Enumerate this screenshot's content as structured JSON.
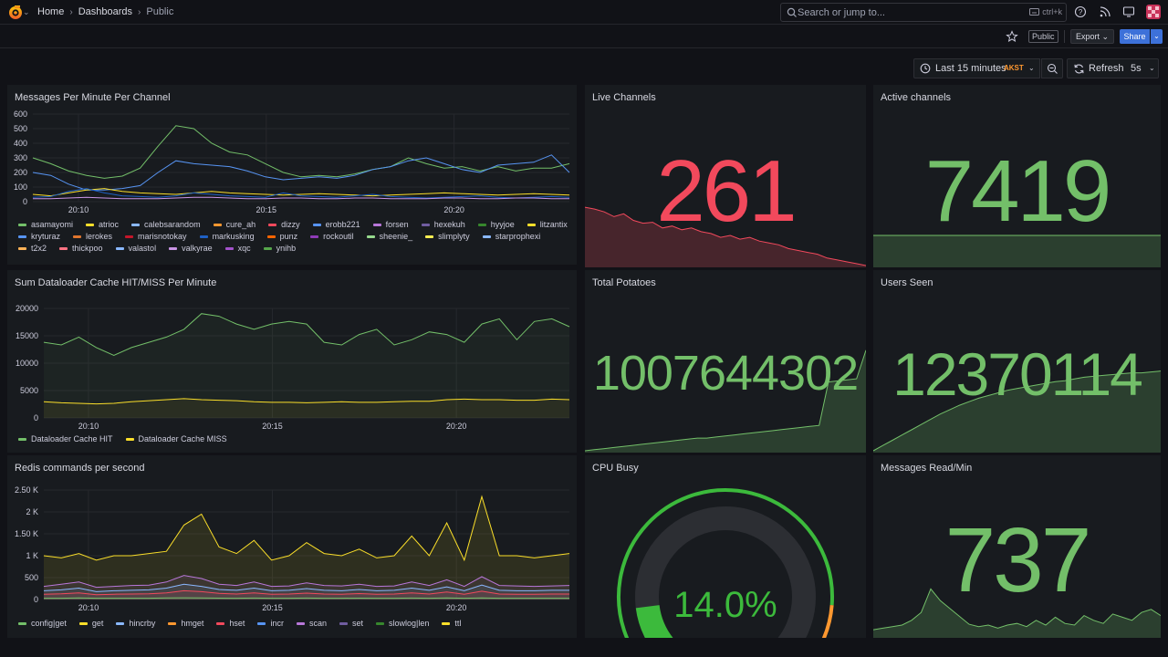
{
  "nav": {
    "breadcrumbs": [
      "Home",
      "Dashboards",
      "Public"
    ],
    "search_placeholder": "Search or jump to...",
    "search_shortcut": "ctrl+k"
  },
  "toolbar": {
    "public_badge": "Public",
    "export_label": "Export",
    "share_label": "Share",
    "time_range": "Last 15 minutes",
    "timezone": "AKST",
    "refresh_label": "Refresh",
    "refresh_interval": "5s"
  },
  "colors": {
    "green": "#73bf69",
    "red": "#f2495c",
    "yellow": "#fade2a",
    "orange": "#ff9830",
    "gauge_track": "#2c2e33"
  },
  "panels": {
    "messages": {
      "title": "Messages Per Minute Per Channel",
      "legend": [
        {
          "name": "asamayomi",
          "color": "#73bf69"
        },
        {
          "name": "atrioc",
          "color": "#fade2a"
        },
        {
          "name": "calebsarandom",
          "color": "#8ab8ff"
        },
        {
          "name": "cure_ah",
          "color": "#ff9830"
        },
        {
          "name": "dizzy",
          "color": "#f2495c"
        },
        {
          "name": "erobb221",
          "color": "#5794f2"
        },
        {
          "name": "forsen",
          "color": "#b877d9"
        },
        {
          "name": "hexekuh",
          "color": "#705da0"
        },
        {
          "name": "hyyjoe",
          "color": "#37872d"
        },
        {
          "name": "litzantix",
          "color": "#fade2a"
        },
        {
          "name": "kryturaz",
          "color": "#5794f2"
        },
        {
          "name": "lerokes",
          "color": "#e0752d"
        },
        {
          "name": "marisnotokay",
          "color": "#c4162a"
        },
        {
          "name": "markusking",
          "color": "#1f60c4"
        },
        {
          "name": "punz",
          "color": "#fa6400"
        },
        {
          "name": "rockoutil",
          "color": "#8f3bb8"
        },
        {
          "name": "sheenie_",
          "color": "#96d98d"
        },
        {
          "name": "slimplyty",
          "color": "#ffee52"
        },
        {
          "name": "starprophexi",
          "color": "#8ab8ff"
        },
        {
          "name": "t2x2",
          "color": "#ffb357"
        },
        {
          "name": "thickpoo",
          "color": "#ff7383"
        },
        {
          "name": "valastol",
          "color": "#8ab8ff"
        },
        {
          "name": "valkyrae",
          "color": "#ca95e5"
        },
        {
          "name": "xqc",
          "color": "#a352cc"
        },
        {
          "name": "ynihb",
          "color": "#56a64b"
        }
      ]
    },
    "live_channels": {
      "title": "Live Channels",
      "value": "261"
    },
    "active_channels": {
      "title": "Active channels",
      "value": "7419"
    },
    "dataloader": {
      "title": "Sum Dataloader Cache HIT/MISS Per Minute",
      "legend": [
        {
          "name": "Dataloader Cache HIT",
          "color": "#73bf69"
        },
        {
          "name": "Dataloader Cache MISS",
          "color": "#fade2a"
        }
      ]
    },
    "total_potatoes": {
      "title": "Total Potatoes",
      "value": "1007644302"
    },
    "users_seen": {
      "title": "Users Seen",
      "value": "12370114"
    },
    "redis": {
      "title": "Redis commands per second",
      "legend": [
        {
          "name": "config|get",
          "color": "#73bf69"
        },
        {
          "name": "get",
          "color": "#fade2a"
        },
        {
          "name": "hincrby",
          "color": "#8ab8ff"
        },
        {
          "name": "hmget",
          "color": "#ff9830"
        },
        {
          "name": "hset",
          "color": "#f2495c"
        },
        {
          "name": "incr",
          "color": "#5794f2"
        },
        {
          "name": "scan",
          "color": "#b877d9"
        },
        {
          "name": "set",
          "color": "#705da0"
        },
        {
          "name": "slowlog|len",
          "color": "#37872d"
        },
        {
          "name": "ttl",
          "color": "#fade2a"
        }
      ]
    },
    "cpu_busy": {
      "title": "CPU Busy",
      "value": "14.0%",
      "percent": 14.0,
      "threshold_orange": 85,
      "threshold_red": 95
    },
    "messages_read": {
      "title": "Messages Read/Min",
      "value": "737"
    }
  },
  "chart_data": [
    {
      "type": "line",
      "title": "Messages Per Minute Per Channel",
      "x_ticks": [
        "20:10",
        "20:15",
        "20:20"
      ],
      "y_ticks": [
        "0",
        "100",
        "200",
        "300",
        "400",
        "500",
        "600"
      ],
      "ylim": [
        0,
        600
      ],
      "x": [
        0,
        1,
        2,
        3,
        4,
        5,
        6,
        7,
        8,
        9,
        10,
        11,
        12,
        13,
        14,
        15,
        16,
        17,
        18,
        19,
        20,
        21,
        22,
        23,
        24,
        25,
        26,
        27,
        28,
        29,
        30
      ],
      "series": [
        {
          "name": "asamayomi",
          "values": [
            300,
            260,
            210,
            180,
            160,
            175,
            230,
            380,
            520,
            500,
            400,
            340,
            320,
            260,
            200,
            170,
            180,
            170,
            190,
            220,
            240,
            300,
            260,
            230,
            240,
            210,
            240,
            210,
            230,
            230,
            260
          ]
        },
        {
          "name": "erobb221",
          "values": [
            200,
            180,
            120,
            80,
            80,
            90,
            110,
            200,
            280,
            260,
            250,
            240,
            210,
            170,
            150,
            160,
            170,
            160,
            180,
            220,
            240,
            280,
            300,
            260,
            220,
            200,
            250,
            260,
            270,
            320,
            200
          ]
        },
        {
          "name": "atrioc",
          "values": [
            50,
            40,
            60,
            80,
            90,
            70,
            60,
            55,
            50,
            60,
            70,
            60,
            55,
            50,
            45,
            50,
            55,
            50,
            45,
            40,
            45,
            50,
            55,
            60,
            55,
            50,
            45,
            50,
            55,
            50,
            45
          ]
        },
        {
          "name": "markusking",
          "values": [
            30,
            35,
            70,
            90,
            60,
            40,
            35,
            30,
            40,
            60,
            50,
            40,
            35,
            30,
            60,
            40,
            35,
            30,
            40,
            50,
            35,
            30,
            25,
            30,
            35,
            40,
            30,
            25,
            30,
            35,
            30
          ]
        },
        {
          "name": "valkyrae",
          "values": [
            20,
            20,
            25,
            30,
            25,
            20,
            20,
            20,
            25,
            30,
            30,
            25,
            20,
            20,
            25,
            25,
            20,
            20,
            25,
            25,
            20,
            20,
            20,
            25,
            25,
            20,
            20,
            25,
            25,
            20,
            20
          ]
        }
      ]
    },
    {
      "type": "area",
      "title": "Sum Dataloader Cache HIT/MISS Per Minute",
      "x_ticks": [
        "20:10",
        "20:15",
        "20:20"
      ],
      "y_ticks": [
        "0",
        "5000",
        "10000",
        "15000",
        "20000"
      ],
      "ylim": [
        0,
        21000
      ],
      "x": [
        0,
        1,
        2,
        3,
        4,
        5,
        6,
        7,
        8,
        9,
        10,
        11,
        12,
        13,
        14,
        15,
        16,
        17,
        18,
        19,
        20,
        21,
        22,
        23,
        24,
        25,
        26,
        27,
        28,
        29,
        30
      ],
      "series": [
        {
          "name": "Dataloader Cache HIT",
          "values": [
            14500,
            14000,
            15500,
            13500,
            12000,
            13500,
            14500,
            15500,
            17000,
            20000,
            19500,
            18000,
            17000,
            18000,
            18500,
            18000,
            14500,
            14000,
            16000,
            17000,
            14000,
            15000,
            16500,
            16000,
            14500,
            18000,
            19000,
            15000,
            18500,
            19000,
            17500
          ]
        },
        {
          "name": "Dataloader Cache MISS",
          "values": [
            3100,
            2900,
            2800,
            2700,
            2800,
            3100,
            3300,
            3500,
            3700,
            3500,
            3400,
            3300,
            3100,
            3000,
            3000,
            2900,
            3000,
            3100,
            3000,
            3000,
            3100,
            3200,
            3200,
            3500,
            3600,
            3500,
            3500,
            3400,
            3400,
            3600,
            3500
          ]
        }
      ]
    },
    {
      "type": "area",
      "title": "Redis commands per second",
      "x_ticks": [
        "20:10",
        "20:15",
        "20:20"
      ],
      "y_ticks": [
        "0",
        "500",
        "1 K",
        "1.50 K",
        "2 K",
        "2.50 K"
      ],
      "ylim": [
        0,
        2500
      ],
      "x": [
        0,
        1,
        2,
        3,
        4,
        5,
        6,
        7,
        8,
        9,
        10,
        11,
        12,
        13,
        14,
        15,
        16,
        17,
        18,
        19,
        20,
        21,
        22,
        23,
        24,
        25,
        26,
        27,
        28,
        29,
        30
      ],
      "series": [
        {
          "name": "get",
          "values": [
            1000,
            950,
            1050,
            900,
            1000,
            1000,
            1050,
            1100,
            1700,
            1950,
            1200,
            1050,
            1350,
            900,
            1000,
            1300,
            1050,
            1000,
            1150,
            950,
            1000,
            1450,
            1000,
            1750,
            900,
            2350,
            1000,
            1000,
            950,
            1000,
            1050
          ]
        },
        {
          "name": "scan",
          "values": [
            300,
            350,
            400,
            280,
            300,
            320,
            330,
            400,
            550,
            480,
            350,
            320,
            400,
            300,
            310,
            380,
            320,
            310,
            350,
            300,
            310,
            400,
            320,
            450,
            300,
            520,
            320,
            310,
            300,
            310,
            320
          ]
        },
        {
          "name": "hincrby",
          "values": [
            200,
            220,
            260,
            180,
            200,
            210,
            220,
            260,
            350,
            300,
            230,
            210,
            260,
            200,
            210,
            250,
            210,
            200,
            230,
            200,
            210,
            260,
            210,
            290,
            200,
            330,
            210,
            200,
            200,
            210,
            210
          ]
        },
        {
          "name": "hset",
          "values": [
            120,
            130,
            150,
            110,
            120,
            125,
            130,
            150,
            200,
            180,
            140,
            125,
            150,
            120,
            125,
            145,
            125,
            120,
            135,
            120,
            125,
            150,
            125,
            170,
            120,
            190,
            125,
            120,
            120,
            125,
            125
          ]
        },
        {
          "name": "config|get",
          "values": [
            30,
            30,
            35,
            30,
            30,
            30,
            30,
            35,
            40,
            38,
            32,
            30,
            34,
            30,
            30,
            33,
            30,
            30,
            32,
            30,
            30,
            34,
            30,
            36,
            30,
            38,
            30,
            30,
            30,
            30,
            30
          ]
        }
      ]
    },
    {
      "type": "area",
      "title": "Live Channels",
      "values": [
        62,
        60,
        57,
        52,
        55,
        48,
        45,
        46,
        40,
        42,
        38,
        40,
        36,
        34,
        30,
        32,
        28,
        30,
        26,
        24,
        22,
        18,
        16,
        14,
        12,
        8,
        6,
        4,
        2,
        0
      ]
    },
    {
      "type": "area",
      "title": "Active channels",
      "values": [
        50,
        50,
        50,
        50,
        50,
        50,
        50,
        50,
        50,
        50,
        50,
        50,
        50,
        50,
        50,
        50,
        50,
        50,
        50,
        50
      ]
    },
    {
      "type": "area",
      "title": "Total Potatoes",
      "values": [
        0,
        1,
        2,
        3,
        4,
        5,
        6,
        7,
        8,
        9,
        10,
        11,
        12,
        12,
        13,
        14,
        15,
        16,
        17,
        18,
        19,
        20,
        21,
        22,
        23,
        24,
        65,
        66,
        67,
        68,
        95
      ]
    },
    {
      "type": "area",
      "title": "Users Seen",
      "values": [
        0,
        6,
        12,
        18,
        24,
        30,
        36,
        42,
        47,
        52,
        56,
        60,
        63,
        66,
        69,
        71,
        73,
        75,
        77,
        79,
        80,
        82,
        84,
        85,
        86,
        87,
        88,
        89,
        89,
        90,
        91
      ]
    },
    {
      "type": "area",
      "title": "Messages Read/Min",
      "values": [
        8,
        10,
        12,
        14,
        20,
        30,
        60,
        45,
        35,
        25,
        15,
        12,
        14,
        10,
        14,
        16,
        12,
        20,
        14,
        24,
        16,
        14,
        26,
        20,
        16,
        28,
        24,
        20,
        30,
        34,
        26
      ]
    }
  ]
}
